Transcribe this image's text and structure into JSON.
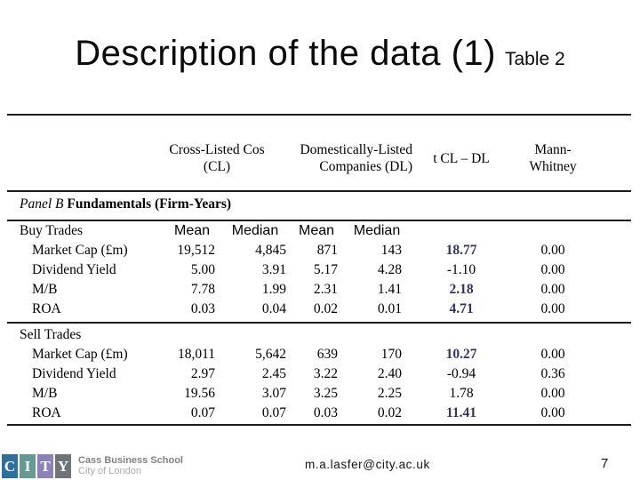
{
  "slide": {
    "title": "Description of the data (1)",
    "title_suffix": "Table 2",
    "email": "m.a.lasfer@city.ac.uk",
    "page_number": "7"
  },
  "colors": {
    "t_stat_highlight": "#333366",
    "rule": "#1c1c1c"
  },
  "logo": {
    "letters": [
      {
        "char": "C",
        "color": "#2e6f9e"
      },
      {
        "char": "I",
        "color": "#679994"
      },
      {
        "char": "T",
        "color": "#8c82ba"
      },
      {
        "char": "Y",
        "color": "#6f7277"
      }
    ],
    "name": "Cass Business School",
    "subname": "City of London"
  },
  "table": {
    "col_headers": {
      "cl_line1": "Cross-Listed Cos",
      "cl_line2": "(CL)",
      "dl_line1": "Domestically-Listed",
      "dl_line2": "Companies (DL)",
      "t": "t CL – DL",
      "mw_line1": "Mann-",
      "mw_line2": "Whitney"
    },
    "panel_label_italic": "Panel B",
    "panel_label_bold": "Fundamentals (Firm-Years)",
    "stat_headers": [
      "Mean",
      "Median",
      "Mean",
      "Median"
    ],
    "sections": [
      {
        "label": "Buy Trades",
        "rows": [
          {
            "label": "Market Cap (£m)",
            "cl_mean": "19,512",
            "cl_median": "4,845",
            "dl_mean": "871",
            "dl_median": "143",
            "t": "18.77",
            "mw": "0.00"
          },
          {
            "label": "Dividend Yield",
            "cl_mean": "5.00",
            "cl_median": "3.91",
            "dl_mean": "5.17",
            "dl_median": "4.28",
            "t": "-1.10",
            "mw": "0.00"
          },
          {
            "label": "M/B",
            "cl_mean": "7.78",
            "cl_median": "1.99",
            "dl_mean": "2.31",
            "dl_median": "1.41",
            "t": "2.18",
            "mw": "0.00"
          },
          {
            "label": "ROA",
            "cl_mean": "0.03",
            "cl_median": "0.04",
            "dl_mean": "0.02",
            "dl_median": "0.01",
            "t": "4.71",
            "mw": "0.00"
          }
        ]
      },
      {
        "label": "Sell Trades",
        "rows": [
          {
            "label": "Market Cap (£m)",
            "cl_mean": "18,011",
            "cl_median": "5,642",
            "dl_mean": "639",
            "dl_median": "170",
            "t": "10.27",
            "mw": "0.00"
          },
          {
            "label": "Dividend Yield",
            "cl_mean": "2.97",
            "cl_median": "2.45",
            "dl_mean": "3.22",
            "dl_median": "2.40",
            "t": "-0.94",
            "mw": "0.36"
          },
          {
            "label": "M/B",
            "cl_mean": "19.56",
            "cl_median": "3.07",
            "dl_mean": "3.25",
            "dl_median": "2.25",
            "t": "1.78",
            "mw": "0.00"
          },
          {
            "label": "ROA",
            "cl_mean": "0.07",
            "cl_median": "0.07",
            "dl_mean": "0.03",
            "dl_median": "0.02",
            "t": "11.41",
            "mw": "0.00"
          }
        ]
      }
    ]
  }
}
